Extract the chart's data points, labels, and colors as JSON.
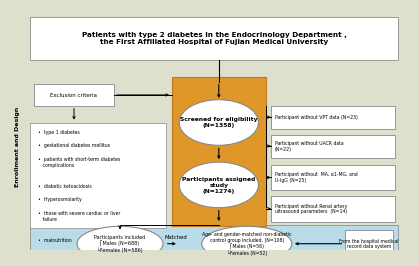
{
  "bg_color": "#dde0cc",
  "title_text": "Patients with type 2 diabetes in the Endocrinology Department ,\nthe First Affiliated Hospital of Fujian Medical University",
  "title_box_color": "#ffffff",
  "title_box_edge": "#999999",
  "exclusion_label": "Exclusion criteria",
  "exclusion_box_color": "#ffffff",
  "exclusion_box_edge": "#888888",
  "orange_box_color": "#e0972a",
  "orange_box_edge": "#c07820",
  "screened_text": "Screened for eligibility\n(N=1358)",
  "assigned_text": "Participants assigned\nstudy\n(N=1274)",
  "excl_list": [
    "•  type 1 diabetes",
    "•  gestational diabetes mellitus",
    "•  patients with short-term diabetes\n   complications",
    "•  diabetic ketoacidosis",
    "•  Hyperosmolarity",
    "•  those with severe cardiac or liver\n   failure",
    "•  malnutrition"
  ],
  "excl_box_color": "#ffffff",
  "excl_box_edge": "#999999",
  "right_boxes": [
    "Participant without VPT data (N=23)",
    "Participant without UACR data\n(N=22)",
    "Participant without  MA, α1-MG, and\nU-IgG (N=25)",
    "Participant without Renal artery\nultrasound parameters  (N=14)"
  ],
  "right_box_color": "#ffffff",
  "right_box_edge": "#888888",
  "bottom_bg_color": "#b8dce8",
  "participants_included_text": "Participants included\n⎡Males (N=688)\n└Females (N=586)",
  "matched_text": "Matched",
  "control_group_text": "Age- and gender-matched non-diabetic\ncontrol group included, (N=108)\n⎡Males (N=56)\n└Females (N=52)",
  "hospital_text": "From the hospital medical\nrecord data system",
  "ellipse_color": "#ffffff",
  "ellipse_edge": "#888888",
  "side_label": "Enrollment and Design",
  "side_label_color": "#000000"
}
